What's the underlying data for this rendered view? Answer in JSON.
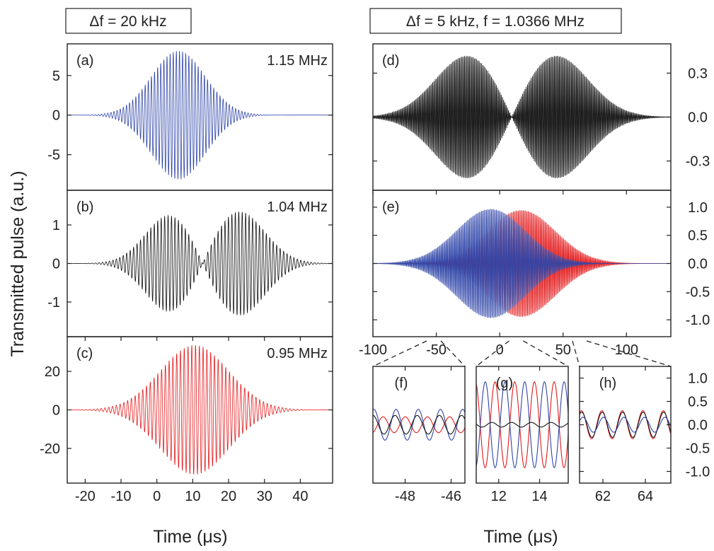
{
  "headers": {
    "left": "Δf = 20 kHz",
    "right": "Δf = 5 kHz, f = 1.0366 MHz"
  },
  "ylabel": "Transmitted pulse (a.u.)",
  "colors": {
    "blue": "#2f45a8",
    "black": "#111111",
    "red": "#e31a1c"
  },
  "chart_data": [
    {
      "id": "a",
      "type": "line",
      "tag": "(a)",
      "annotation": "1.15 MHz",
      "xlabel": "Time (μs)",
      "xlim": [
        -25,
        49
      ],
      "ylim": [
        -9.5,
        9
      ],
      "yticks": [
        {
          "v": 5,
          "t": "5"
        },
        {
          "v": 0,
          "t": "0"
        },
        {
          "v": -5,
          "t": "-5"
        }
      ],
      "xticks": [],
      "series": [
        {
          "color": "blue",
          "carrier": 1.15,
          "components": [
            {
              "amp": 8.1,
              "center": 6,
              "width": 7.5
            }
          ]
        }
      ]
    },
    {
      "id": "b",
      "type": "line",
      "tag": "(b)",
      "annotation": "1.04 MHz",
      "xlim": [
        -25,
        49
      ],
      "ylim": [
        -1.9,
        1.9
      ],
      "yticks": [
        {
          "v": 1,
          "t": "1"
        },
        {
          "v": 0,
          "t": "0"
        },
        {
          "v": -1,
          "t": "-1"
        }
      ],
      "xticks": [],
      "series": [
        {
          "color": "black",
          "carrier": 1.04,
          "components": [
            {
              "amp": 1.3,
              "center": 4,
              "width": 7
            },
            {
              "amp": -1.38,
              "center": 22.5,
              "width": 7.5
            }
          ]
        }
      ]
    },
    {
      "id": "c",
      "type": "line",
      "tag": "(c)",
      "annotation": "0.95 MHz",
      "xlim": [
        -25,
        49
      ],
      "ylim": [
        -38,
        38
      ],
      "yticks": [
        {
          "v": 20,
          "t": "20"
        },
        {
          "v": 0,
          "t": "0"
        },
        {
          "v": -20,
          "t": "-20"
        }
      ],
      "xticks": [
        {
          "v": -20,
          "t": "-20"
        },
        {
          "v": -10,
          "t": "-10"
        },
        {
          "v": 0,
          "t": "0"
        },
        {
          "v": 10,
          "t": "10"
        },
        {
          "v": 20,
          "t": "20"
        },
        {
          "v": 30,
          "t": "30"
        },
        {
          "v": 40,
          "t": "40"
        }
      ],
      "series": [
        {
          "color": "red",
          "carrier": 0.95,
          "components": [
            {
              "amp": 33.5,
              "center": 10.5,
              "width": 9.5
            }
          ]
        }
      ]
    },
    {
      "id": "d",
      "type": "line",
      "tag": "(d)",
      "xlim": [
        -100,
        135
      ],
      "ylim": [
        -0.5,
        0.5
      ],
      "yticks": [
        {
          "v": 0.3,
          "t": "0.3"
        },
        {
          "v": 0,
          "t": "0.0"
        },
        {
          "v": -0.3,
          "t": "-0.3"
        }
      ],
      "xticks": [],
      "series": [
        {
          "color": "black",
          "carrier": 1.0366,
          "components": [
            {
              "amp": 0.44,
              "center": -23,
              "width": 27
            },
            {
              "amp": -0.44,
              "center": 42,
              "width": 27
            }
          ]
        }
      ]
    },
    {
      "id": "e",
      "type": "line",
      "tag": "(e)",
      "xlim": [
        -100,
        135
      ],
      "ylim": [
        -1.3,
        1.3
      ],
      "yticks": [
        {
          "v": 1.0,
          "t": "1.0"
        },
        {
          "v": 0.5,
          "t": "0.5"
        },
        {
          "v": 0,
          "t": "0.0"
        },
        {
          "v": -0.5,
          "t": "-0.5"
        },
        {
          "v": -1.0,
          "t": "-1.0"
        }
      ],
      "xticks": [
        {
          "v": -100,
          "t": "-100"
        },
        {
          "v": -50,
          "t": "-50"
        },
        {
          "v": 0,
          "t": "0"
        },
        {
          "v": 50,
          "t": "50"
        },
        {
          "v": 100,
          "t": "100"
        }
      ],
      "series": [
        {
          "color": "red",
          "carrier": 1.0366,
          "components": [
            {
              "amp": 0.95,
              "center": 17,
              "width": 27
            }
          ]
        },
        {
          "color": "blue",
          "carrier": 1.0366,
          "components": [
            {
              "amp": 0.97,
              "center": -7,
              "width": 27
            }
          ]
        }
      ]
    },
    {
      "id": "f",
      "type": "line",
      "tag": "(f)",
      "xlim": [
        -49.4,
        -45.4
      ],
      "ylim": [
        -1.25,
        1.25
      ],
      "yticks": [],
      "xticks": [
        {
          "v": -48,
          "t": "-48"
        },
        {
          "v": -46,
          "t": "-46"
        }
      ],
      "series": [
        {
          "color": "red",
          "carrier": 1.0366,
          "fixed": 0.17,
          "phase": 0.0
        },
        {
          "color": "blue",
          "carrier": 1.0366,
          "fixed": 0.33,
          "phase": 2.6
        },
        {
          "color": "black",
          "carrier": 1.0366,
          "fixed": 0.2,
          "phase": 2.9
        }
      ]
    },
    {
      "id": "g",
      "type": "line",
      "tag": "(g)",
      "xlim": [
        10.9,
        15.4
      ],
      "ylim": [
        -1.25,
        1.25
      ],
      "yticks": [],
      "xticks": [
        {
          "v": 12,
          "t": "12"
        },
        {
          "v": 14,
          "t": "14"
        }
      ],
      "series": [
        {
          "color": "red",
          "carrier": 1.0366,
          "fixed": 0.92,
          "phase": 0.0
        },
        {
          "color": "blue",
          "carrier": 1.0366,
          "fixed": 0.92,
          "phase": 3.1
        },
        {
          "color": "black",
          "carrier": 1.0366,
          "fixed": 0.05,
          "phase": 1.0
        }
      ]
    },
    {
      "id": "h",
      "type": "line",
      "tag": "(h)",
      "xlim": [
        60.9,
        65.2
      ],
      "ylim": [
        -1.25,
        1.25
      ],
      "yticks": [
        {
          "v": 1.0,
          "t": "1.0"
        },
        {
          "v": 0.5,
          "t": "0.5"
        },
        {
          "v": 0,
          "t": "0.0"
        },
        {
          "v": -0.5,
          "t": "-0.5"
        },
        {
          "v": -1.0,
          "t": "-1.0"
        }
      ],
      "xticks": [
        {
          "v": 62,
          "t": "62"
        },
        {
          "v": 64,
          "t": "64"
        }
      ],
      "series": [
        {
          "color": "red",
          "carrier": 1.0366,
          "fixed": 0.3,
          "phase": 0.2
        },
        {
          "color": "black",
          "carrier": 1.0366,
          "fixed": 0.27,
          "phase": 0.1
        },
        {
          "color": "blue",
          "carrier": 1.0366,
          "fixed": 0.16,
          "phase": -0.3
        }
      ]
    }
  ],
  "xlabel_left": "Time (μs)",
  "xlabel_right": "Time (μs)",
  "zoom_links": [
    {
      "from_x": -52,
      "to": "f"
    },
    {
      "from_x": 13,
      "to": "g"
    },
    {
      "from_x": 63,
      "to": "h"
    }
  ]
}
